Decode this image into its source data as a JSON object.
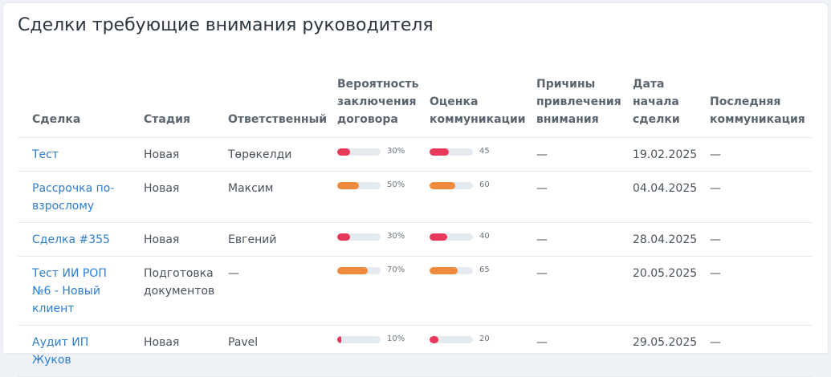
{
  "title": "Сделки требующие внимания руководителя",
  "columns": {
    "deal": "Сделка",
    "stage": "Стадия",
    "responsible": "Ответственный",
    "probability": [
      "Вероятность",
      "заключения",
      "договора"
    ],
    "communication": [
      "Оценка",
      "коммуникации"
    ],
    "reasons": [
      "Причины",
      "привлечения",
      "внимания"
    ],
    "start_date": [
      "Дата",
      "начала",
      "сделки"
    ],
    "last_comm": [
      "Последняя",
      "коммуникация"
    ]
  },
  "colors": {
    "red": "#e8395a",
    "orange": "#f08a3c",
    "track": "#e5e9f0",
    "link": "#2d7ed1"
  },
  "rows": [
    {
      "deal": "Тест",
      "stage": "Новая",
      "responsible": "Төрөкелди",
      "probability": 30,
      "probability_label": "30%",
      "probability_color": "#e8395a",
      "communication": 45,
      "communication_label": "45",
      "communication_color": "#e8395a",
      "reasons": "—",
      "start_date": "19.02.2025",
      "last_comm": "—"
    },
    {
      "deal": "Рассрочка по-взрослому",
      "stage": "Новая",
      "responsible": "Максим",
      "probability": 50,
      "probability_label": "50%",
      "probability_color": "#f08a3c",
      "communication": 60,
      "communication_label": "60",
      "communication_color": "#f08a3c",
      "reasons": "—",
      "start_date": "04.04.2025",
      "last_comm": "—"
    },
    {
      "deal": "Сделка #355",
      "stage": "Новая",
      "responsible": "Евгений",
      "probability": 30,
      "probability_label": "30%",
      "probability_color": "#e8395a",
      "communication": 40,
      "communication_label": "40",
      "communication_color": "#e8395a",
      "reasons": "—",
      "start_date": "28.04.2025",
      "last_comm": "—"
    },
    {
      "deal": "Тест ИИ РОП №6 - Новый клиент",
      "stage": "Подготовка документов",
      "responsible": "—",
      "probability": 70,
      "probability_label": "70%",
      "probability_color": "#f08a3c",
      "communication": 65,
      "communication_label": "65",
      "communication_color": "#f08a3c",
      "reasons": "—",
      "start_date": "20.05.2025",
      "last_comm": "—"
    },
    {
      "deal": "Аудит ИП Жуков",
      "stage": "Новая",
      "responsible": "Pavel",
      "probability": 10,
      "probability_label": "10%",
      "probability_color": "#e8395a",
      "communication": 20,
      "communication_label": "20",
      "communication_color": "#e8395a",
      "reasons": "—",
      "start_date": "29.05.2025",
      "last_comm": "—"
    }
  ]
}
